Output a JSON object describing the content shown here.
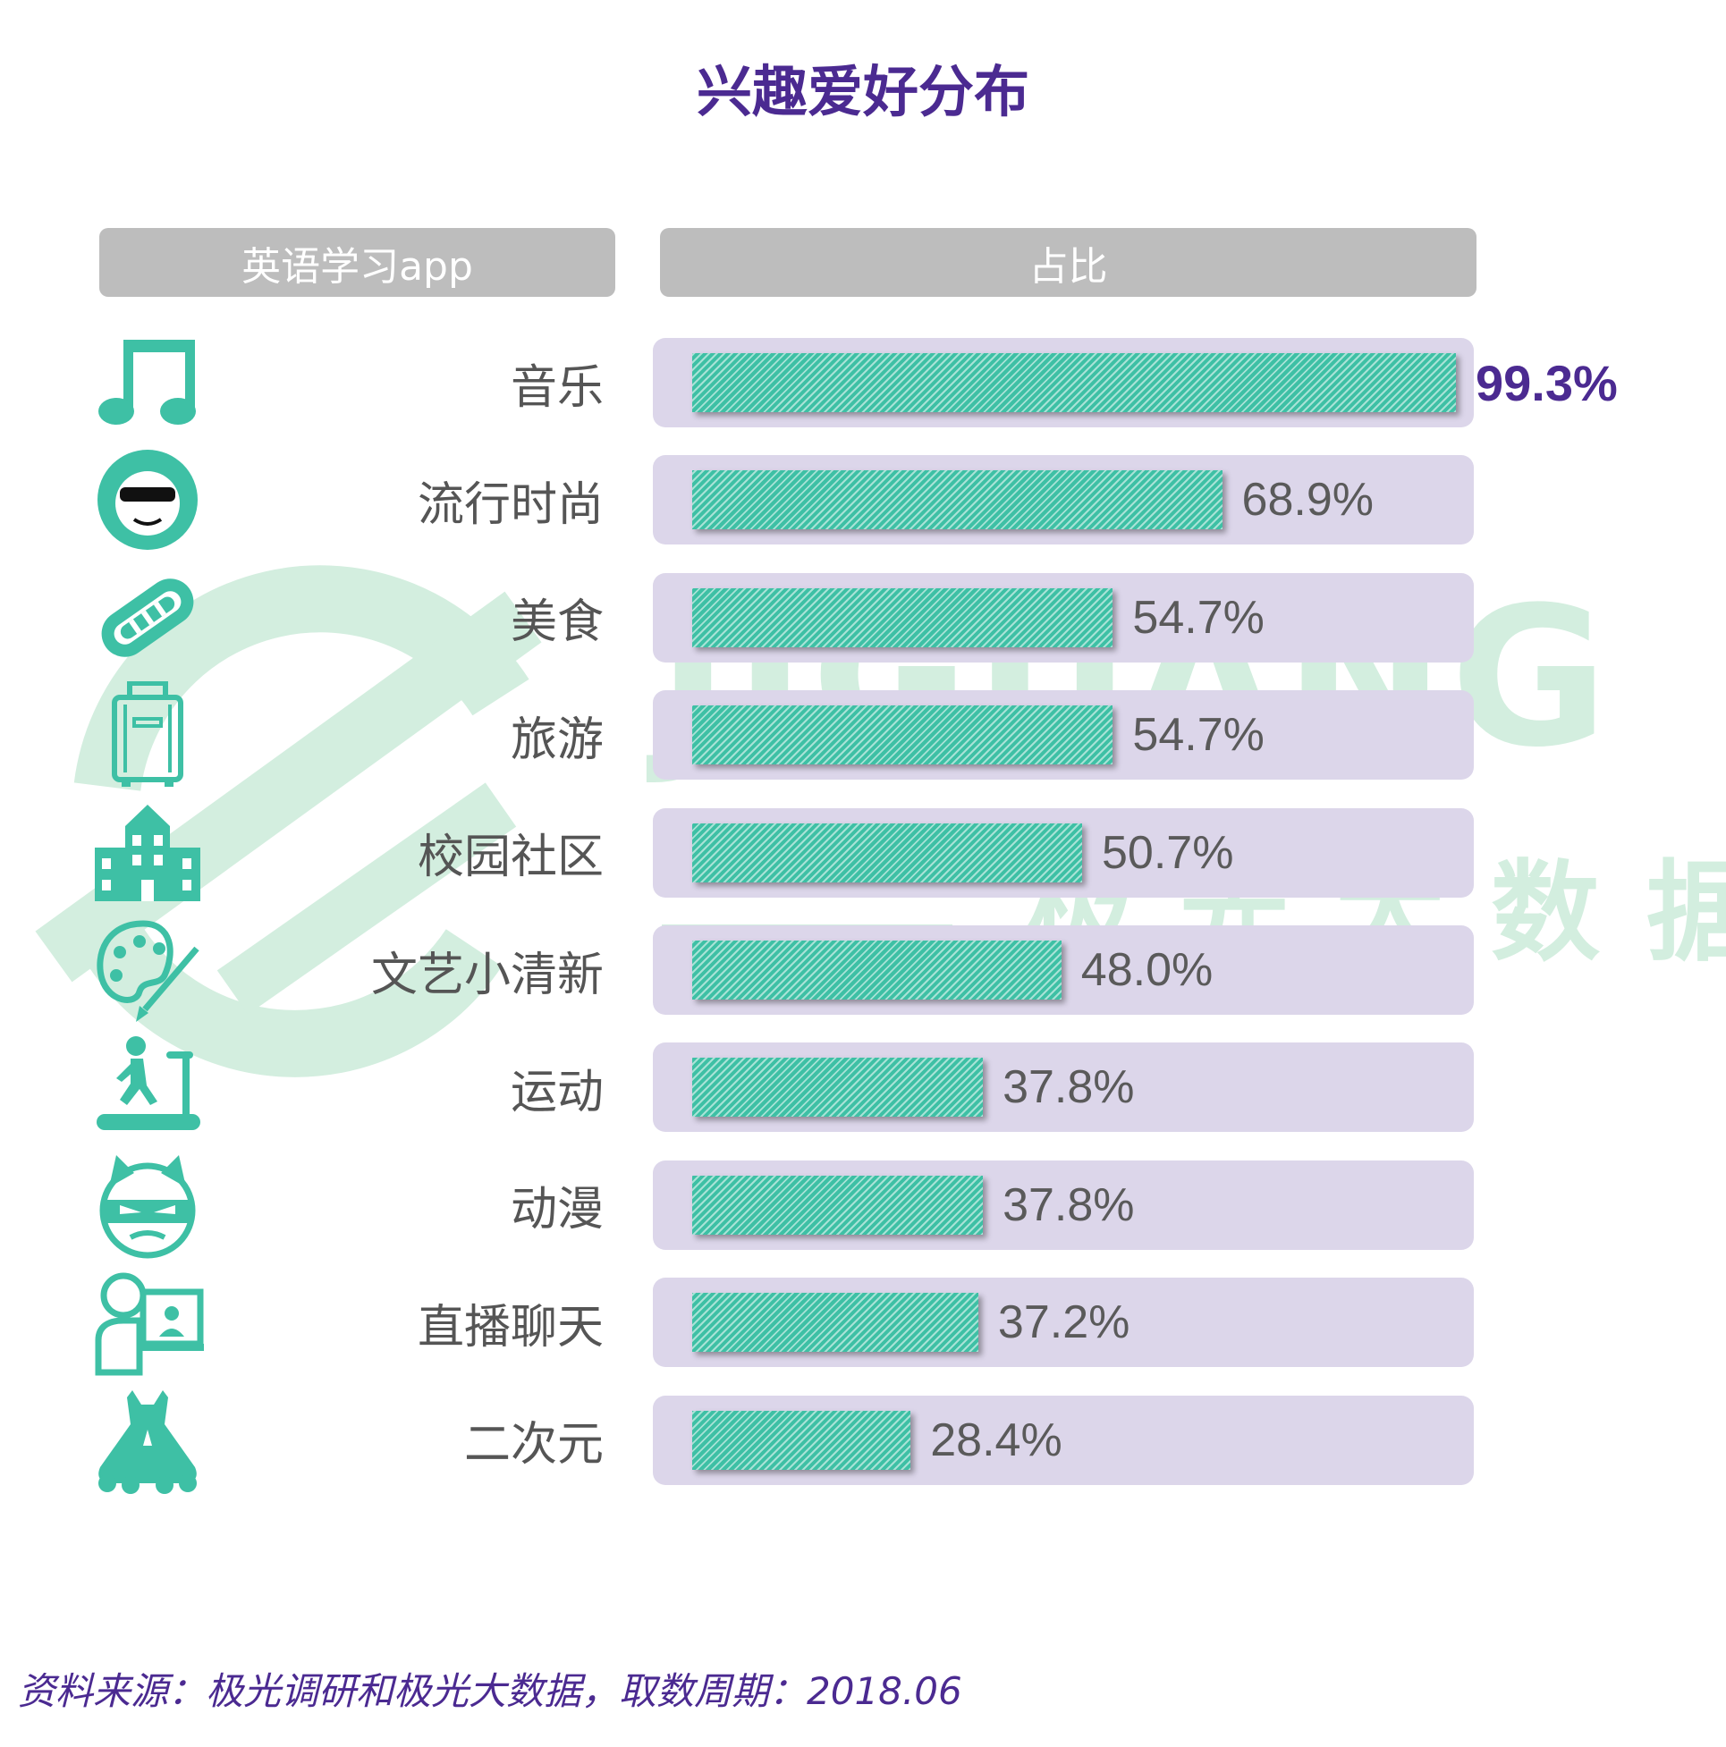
{
  "title": "兴趣爱好分布",
  "header": {
    "left": "英语学习app",
    "right": "占比"
  },
  "watermark": {
    "brand": "JIGUANG",
    "brand_cn": "极光大数据"
  },
  "source": "资料来源：极光调研和极光大数据，取数周期：2018.06",
  "colors": {
    "title": "#4B2A91",
    "bar": "#3EC0A5",
    "track": "#DCD6EA",
    "header": "#BDBDBD",
    "watermark": "#D3EEDF"
  },
  "chart_data": {
    "type": "bar",
    "orientation": "horizontal",
    "categories": [
      "音乐",
      "流行时尚",
      "美食",
      "旅游",
      "校园社区",
      "文艺小清新",
      "运动",
      "动漫",
      "直播聊天",
      "二次元"
    ],
    "values": [
      99.3,
      68.9,
      54.7,
      54.7,
      50.7,
      48.0,
      37.8,
      37.8,
      37.2,
      28.4
    ],
    "value_labels": [
      "99.3%",
      "68.9%",
      "54.7%",
      "54.7%",
      "50.7%",
      "48.0%",
      "37.8%",
      "37.8%",
      "37.2%",
      "28.4%"
    ],
    "icons": [
      "music-note-icon",
      "sunglasses-face-icon",
      "hotdog-icon",
      "suitcase-icon",
      "school-building-icon",
      "palette-icon",
      "treadmill-runner-icon",
      "anime-mask-icon",
      "live-stream-icon",
      "dress-icon"
    ],
    "xlim": [
      0,
      100
    ],
    "unit": "%"
  }
}
